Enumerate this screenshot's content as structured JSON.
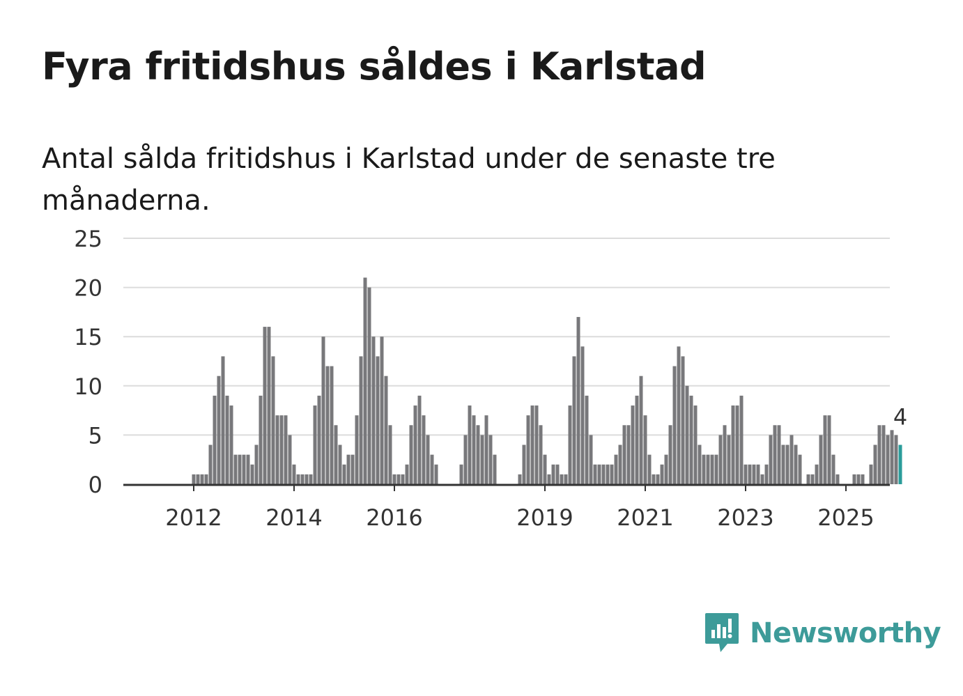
{
  "title": "Fyra fritidshus såldes i Karlstad",
  "subtitle": "Antal sålda fritidshus i Karlstad under de senaste tre månaderna.",
  "brand": {
    "name": "Newsworthy",
    "icon": "newsworthy-logo-icon",
    "color": "#3d9b99"
  },
  "chart_data": {
    "type": "bar",
    "title": "",
    "xlabel": "",
    "ylabel": "",
    "ylim": [
      0,
      25
    ],
    "yticks": [
      0,
      5,
      10,
      15,
      20,
      25
    ],
    "xticks": [
      "2012",
      "2014",
      "2016",
      "2019",
      "2021",
      "2023",
      "2025"
    ],
    "x_start": "2011-05",
    "x_end": "2025-12",
    "grid": true,
    "legend": "none",
    "bar_color": "#78787b",
    "highlight_color": "#2a9c9a",
    "highlight_label": "4",
    "values": [
      0,
      0,
      0,
      0,
      0,
      0,
      0,
      0,
      1,
      1,
      1,
      1,
      4,
      9,
      11,
      13,
      9,
      8,
      3,
      3,
      3,
      3,
      2,
      4,
      9,
      16,
      16,
      13,
      7,
      7,
      7,
      5,
      2,
      1,
      1,
      1,
      1,
      8,
      9,
      15,
      12,
      12,
      6,
      4,
      2,
      3,
      3,
      7,
      13,
      21,
      20,
      15,
      13,
      15,
      11,
      6,
      1,
      1,
      1,
      2,
      6,
      8,
      9,
      7,
      5,
      3,
      2,
      0,
      0,
      0,
      0,
      0,
      2,
      5,
      8,
      7,
      6,
      5,
      7,
      5,
      3,
      0,
      0,
      0,
      0,
      0,
      1,
      4,
      7,
      8,
      8,
      6,
      3,
      1,
      2,
      2,
      1,
      1,
      8,
      13,
      17,
      14,
      9,
      5,
      2,
      2,
      2,
      2,
      2,
      3,
      4,
      6,
      6,
      8,
      9,
      11,
      7,
      3,
      1,
      1,
      2,
      3,
      6,
      12,
      14,
      13,
      10,
      9,
      8,
      4,
      3,
      3,
      3,
      3,
      5,
      6,
      5,
      8,
      8,
      9,
      2,
      2,
      2,
      2,
      1,
      2,
      5,
      6,
      6,
      4,
      4,
      5,
      4,
      3,
      0,
      1,
      1,
      2,
      5,
      7,
      7,
      3,
      1,
      0,
      0,
      0,
      1,
      1,
      1,
      0,
      2,
      4,
      6,
      6,
      5,
      5.5,
      5,
      4
    ]
  }
}
